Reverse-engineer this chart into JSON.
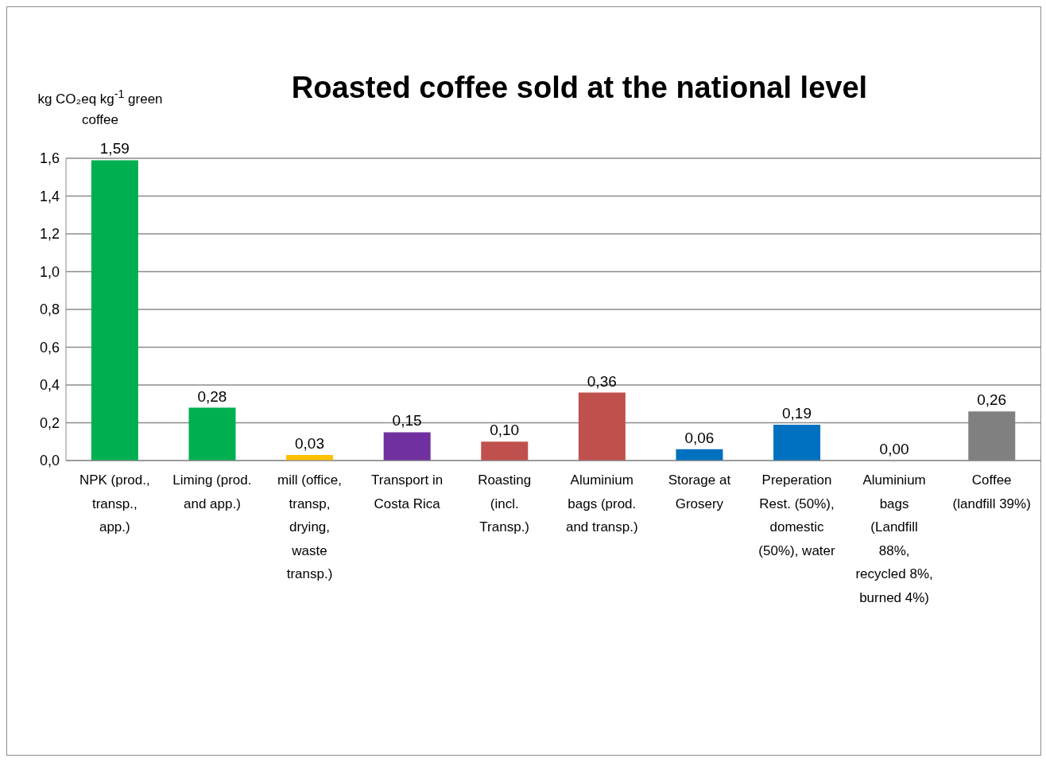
{
  "chart_data": {
    "type": "bar",
    "title": "Roasted coffee sold at the national level",
    "ylabel": "kg CO₂eq kg$^{-1}$ green coffee",
    "categories": [
      "NPK (prod., transp., app.)",
      "Liming (prod. and app.)",
      "mill (office, transp, drying, waste transp.)",
      "Transport in Costa Rica",
      "Roasting (incl. Transp.)",
      "Aluminium bags (prod. and transp.)",
      "Storage at Grosery",
      "Preperation Rest. (50%), domestic (50%), water",
      "Aluminium bags (Landfill 88%, recycled 8%, burned 4%)",
      "Coffee (landfill 39%)"
    ],
    "values": [
      1.59,
      0.28,
      0.03,
      0.15,
      0.1,
      0.36,
      0.06,
      0.19,
      0.0,
      0.26
    ],
    "value_labels": [
      "1,59",
      "0,28",
      "0,03",
      "0,15",
      "0,10",
      "0,36",
      "0,06",
      "0,19",
      "0,00",
      "0,26"
    ],
    "colors": [
      "#00b050",
      "#00b050",
      "#ffc000",
      "#7030a0",
      "#c0504d",
      "#c0504d",
      "#0070c0",
      "#0070c0",
      "#c0504d",
      "#808080"
    ],
    "ylim": [
      0,
      1.6
    ],
    "yticks": [
      {
        "value": 0,
        "label": "0,0"
      },
      {
        "value": 0.2,
        "label": "0,2"
      },
      {
        "value": 0.4,
        "label": "0,4"
      },
      {
        "value": 0.6,
        "label": "0,6"
      },
      {
        "value": 0.8,
        "label": "0,8"
      },
      {
        "value": 1.0,
        "label": "1,0"
      },
      {
        "value": 1.2,
        "label": "1,2"
      },
      {
        "value": 1.4,
        "label": "1,4"
      },
      {
        "value": 1.6,
        "label": "1,6"
      }
    ],
    "grid": "y"
  }
}
